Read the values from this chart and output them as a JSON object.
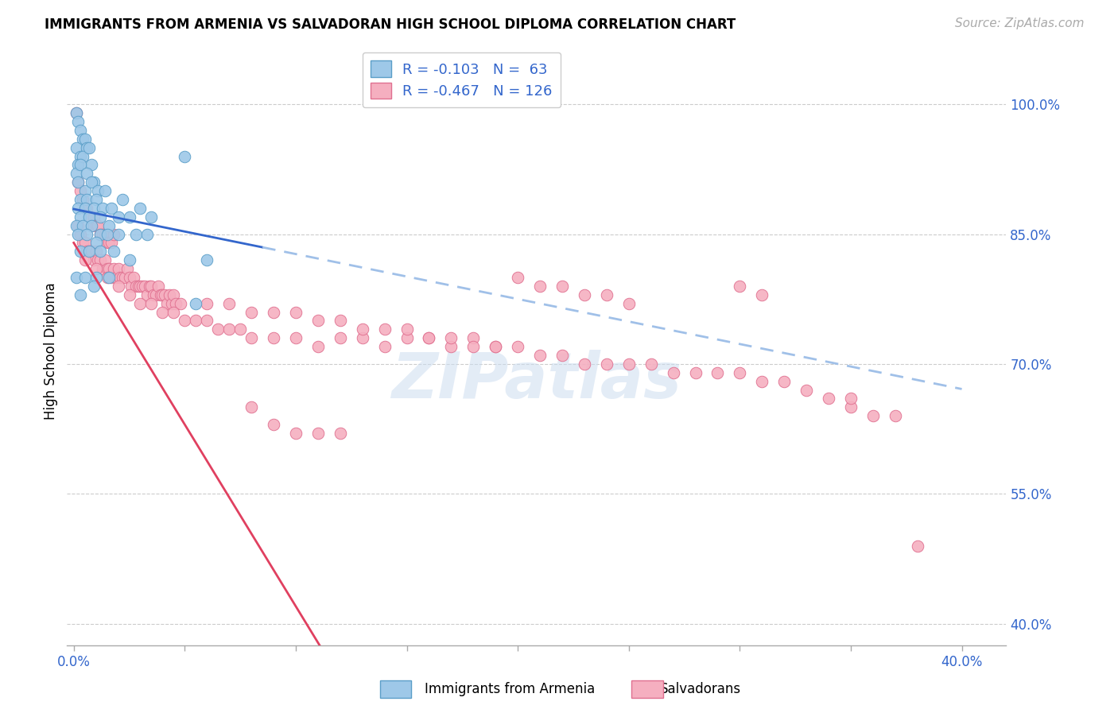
{
  "title": "IMMIGRANTS FROM ARMENIA VS SALVADORAN HIGH SCHOOL DIPLOMA CORRELATION CHART",
  "source": "Source: ZipAtlas.com",
  "ylabel": "High School Diploma",
  "ytick_labels": [
    "100.0%",
    "85.0%",
    "70.0%",
    "55.0%",
    "40.0%"
  ],
  "ytick_values": [
    1.0,
    0.85,
    0.7,
    0.55,
    0.4
  ],
  "xtick_values": [
    0.0,
    0.05,
    0.1,
    0.15,
    0.2,
    0.25,
    0.3,
    0.35,
    0.4
  ],
  "xlim": [
    -0.003,
    0.42
  ],
  "ylim": [
    0.375,
    1.055
  ],
  "watermark": "ZIPatlas",
  "armenia_color": "#9ec8e8",
  "armenia_edge": "#5a9ec8",
  "salvadoran_color": "#f5afc0",
  "salvadoran_edge": "#e07090",
  "trendline_armenia_color": "#3366cc",
  "trendline_salvadoran_color": "#e04060",
  "trendline_dashed_color": "#a0c0e8",
  "armenia_intercept": 0.879,
  "armenia_slope": -0.52,
  "salvadoran_intercept": 0.84,
  "salvadoran_slope": -4.2,
  "armenia_scatter": [
    [
      0.001,
      0.99
    ],
    [
      0.002,
      0.98
    ],
    [
      0.003,
      0.97
    ],
    [
      0.004,
      0.96
    ],
    [
      0.001,
      0.95
    ],
    [
      0.003,
      0.94
    ],
    [
      0.005,
      0.96
    ],
    [
      0.006,
      0.95
    ],
    [
      0.002,
      0.93
    ],
    [
      0.004,
      0.94
    ],
    [
      0.007,
      0.95
    ],
    [
      0.008,
      0.93
    ],
    [
      0.001,
      0.92
    ],
    [
      0.003,
      0.93
    ],
    [
      0.006,
      0.92
    ],
    [
      0.009,
      0.91
    ],
    [
      0.002,
      0.91
    ],
    [
      0.005,
      0.9
    ],
    [
      0.008,
      0.91
    ],
    [
      0.011,
      0.9
    ],
    [
      0.003,
      0.89
    ],
    [
      0.006,
      0.89
    ],
    [
      0.01,
      0.89
    ],
    [
      0.014,
      0.9
    ],
    [
      0.002,
      0.88
    ],
    [
      0.005,
      0.88
    ],
    [
      0.009,
      0.88
    ],
    [
      0.013,
      0.88
    ],
    [
      0.003,
      0.87
    ],
    [
      0.007,
      0.87
    ],
    [
      0.012,
      0.87
    ],
    [
      0.017,
      0.88
    ],
    [
      0.022,
      0.89
    ],
    [
      0.001,
      0.86
    ],
    [
      0.004,
      0.86
    ],
    [
      0.008,
      0.86
    ],
    [
      0.012,
      0.85
    ],
    [
      0.016,
      0.86
    ],
    [
      0.02,
      0.87
    ],
    [
      0.025,
      0.87
    ],
    [
      0.03,
      0.88
    ],
    [
      0.035,
      0.87
    ],
    [
      0.002,
      0.85
    ],
    [
      0.006,
      0.85
    ],
    [
      0.01,
      0.84
    ],
    [
      0.015,
      0.85
    ],
    [
      0.02,
      0.85
    ],
    [
      0.028,
      0.85
    ],
    [
      0.033,
      0.85
    ],
    [
      0.003,
      0.83
    ],
    [
      0.007,
      0.83
    ],
    [
      0.012,
      0.83
    ],
    [
      0.018,
      0.83
    ],
    [
      0.025,
      0.82
    ],
    [
      0.001,
      0.8
    ],
    [
      0.005,
      0.8
    ],
    [
      0.01,
      0.8
    ],
    [
      0.016,
      0.8
    ],
    [
      0.003,
      0.78
    ],
    [
      0.009,
      0.79
    ],
    [
      0.05,
      0.94
    ],
    [
      0.055,
      0.77
    ],
    [
      0.06,
      0.82
    ]
  ],
  "salvadoran_scatter": [
    [
      0.001,
      0.99
    ],
    [
      0.002,
      0.91
    ],
    [
      0.003,
      0.9
    ],
    [
      0.004,
      0.89
    ],
    [
      0.005,
      0.88
    ],
    [
      0.006,
      0.88
    ],
    [
      0.007,
      0.87
    ],
    [
      0.008,
      0.86
    ],
    [
      0.009,
      0.87
    ],
    [
      0.01,
      0.86
    ],
    [
      0.011,
      0.86
    ],
    [
      0.012,
      0.85
    ],
    [
      0.013,
      0.85
    ],
    [
      0.014,
      0.85
    ],
    [
      0.015,
      0.84
    ],
    [
      0.016,
      0.84
    ],
    [
      0.017,
      0.84
    ],
    [
      0.018,
      0.85
    ],
    [
      0.002,
      0.86
    ],
    [
      0.003,
      0.85
    ],
    [
      0.004,
      0.84
    ],
    [
      0.005,
      0.84
    ],
    [
      0.006,
      0.83
    ],
    [
      0.007,
      0.83
    ],
    [
      0.008,
      0.83
    ],
    [
      0.009,
      0.82
    ],
    [
      0.01,
      0.83
    ],
    [
      0.011,
      0.82
    ],
    [
      0.012,
      0.82
    ],
    [
      0.013,
      0.81
    ],
    [
      0.014,
      0.82
    ],
    [
      0.015,
      0.81
    ],
    [
      0.016,
      0.81
    ],
    [
      0.017,
      0.8
    ],
    [
      0.018,
      0.81
    ],
    [
      0.019,
      0.8
    ],
    [
      0.02,
      0.81
    ],
    [
      0.021,
      0.8
    ],
    [
      0.022,
      0.8
    ],
    [
      0.023,
      0.8
    ],
    [
      0.024,
      0.81
    ],
    [
      0.025,
      0.8
    ],
    [
      0.026,
      0.79
    ],
    [
      0.027,
      0.8
    ],
    [
      0.028,
      0.79
    ],
    [
      0.029,
      0.79
    ],
    [
      0.03,
      0.79
    ],
    [
      0.031,
      0.79
    ],
    [
      0.032,
      0.79
    ],
    [
      0.033,
      0.78
    ],
    [
      0.034,
      0.79
    ],
    [
      0.035,
      0.79
    ],
    [
      0.036,
      0.78
    ],
    [
      0.037,
      0.78
    ],
    [
      0.038,
      0.79
    ],
    [
      0.039,
      0.78
    ],
    [
      0.04,
      0.78
    ],
    [
      0.041,
      0.78
    ],
    [
      0.042,
      0.77
    ],
    [
      0.043,
      0.78
    ],
    [
      0.044,
      0.77
    ],
    [
      0.045,
      0.78
    ],
    [
      0.046,
      0.77
    ],
    [
      0.048,
      0.77
    ],
    [
      0.005,
      0.82
    ],
    [
      0.01,
      0.81
    ],
    [
      0.015,
      0.8
    ],
    [
      0.02,
      0.79
    ],
    [
      0.025,
      0.78
    ],
    [
      0.03,
      0.77
    ],
    [
      0.035,
      0.77
    ],
    [
      0.04,
      0.76
    ],
    [
      0.045,
      0.76
    ],
    [
      0.05,
      0.75
    ],
    [
      0.055,
      0.75
    ],
    [
      0.06,
      0.75
    ],
    [
      0.065,
      0.74
    ],
    [
      0.07,
      0.74
    ],
    [
      0.075,
      0.74
    ],
    [
      0.08,
      0.73
    ],
    [
      0.09,
      0.73
    ],
    [
      0.1,
      0.73
    ],
    [
      0.11,
      0.72
    ],
    [
      0.12,
      0.73
    ],
    [
      0.13,
      0.73
    ],
    [
      0.14,
      0.72
    ],
    [
      0.15,
      0.73
    ],
    [
      0.16,
      0.73
    ],
    [
      0.17,
      0.72
    ],
    [
      0.18,
      0.73
    ],
    [
      0.19,
      0.72
    ],
    [
      0.06,
      0.77
    ],
    [
      0.07,
      0.77
    ],
    [
      0.08,
      0.76
    ],
    [
      0.09,
      0.76
    ],
    [
      0.1,
      0.76
    ],
    [
      0.11,
      0.75
    ],
    [
      0.12,
      0.75
    ],
    [
      0.13,
      0.74
    ],
    [
      0.14,
      0.74
    ],
    [
      0.15,
      0.74
    ],
    [
      0.16,
      0.73
    ],
    [
      0.17,
      0.73
    ],
    [
      0.18,
      0.72
    ],
    [
      0.19,
      0.72
    ],
    [
      0.2,
      0.72
    ],
    [
      0.21,
      0.71
    ],
    [
      0.22,
      0.71
    ],
    [
      0.23,
      0.7
    ],
    [
      0.24,
      0.7
    ],
    [
      0.25,
      0.7
    ],
    [
      0.26,
      0.7
    ],
    [
      0.27,
      0.69
    ],
    [
      0.28,
      0.69
    ],
    [
      0.29,
      0.69
    ],
    [
      0.3,
      0.69
    ],
    [
      0.31,
      0.68
    ],
    [
      0.32,
      0.68
    ],
    [
      0.33,
      0.67
    ],
    [
      0.2,
      0.8
    ],
    [
      0.21,
      0.79
    ],
    [
      0.22,
      0.79
    ],
    [
      0.23,
      0.78
    ],
    [
      0.24,
      0.78
    ],
    [
      0.25,
      0.77
    ],
    [
      0.3,
      0.79
    ],
    [
      0.31,
      0.78
    ],
    [
      0.38,
      0.49
    ],
    [
      0.35,
      0.65
    ],
    [
      0.36,
      0.64
    ],
    [
      0.37,
      0.64
    ],
    [
      0.34,
      0.66
    ],
    [
      0.35,
      0.66
    ],
    [
      0.08,
      0.65
    ],
    [
      0.09,
      0.63
    ],
    [
      0.1,
      0.62
    ],
    [
      0.11,
      0.62
    ],
    [
      0.12,
      0.62
    ]
  ]
}
